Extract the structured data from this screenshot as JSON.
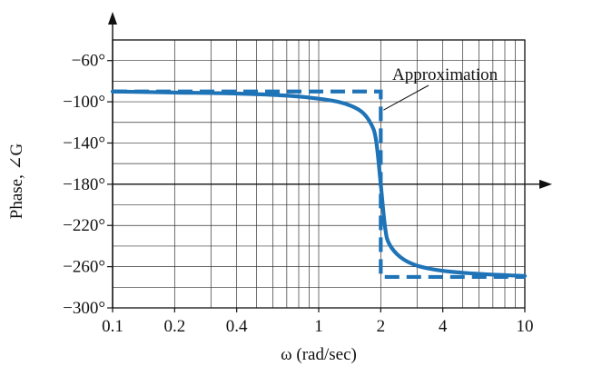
{
  "chart_data": {
    "type": "line",
    "title": "",
    "xlabel": "ω (rad/sec)",
    "ylabel": "Phase, ∠G",
    "x_scale": "log",
    "xlim": [
      0.1,
      10
    ],
    "ylim": [
      -300,
      -40
    ],
    "x_ticks": [
      0.1,
      0.2,
      0.4,
      1,
      2,
      4,
      10
    ],
    "x_tick_labels": [
      "0.1",
      "0.2",
      "0.4",
      "1",
      "2",
      "4",
      "10"
    ],
    "y_ticks": [
      -60,
      -100,
      -140,
      -180,
      -220,
      -260,
      -300
    ],
    "y_tick_labels": [
      "−60°",
      "−100°",
      "−140°",
      "−180°",
      "−220°",
      "−260°",
      "−300°"
    ],
    "grid": true,
    "reference_line_y": -180,
    "colors": {
      "series": "#1f73b7",
      "axis": "#111111",
      "grid": "#333333"
    },
    "series": [
      {
        "style": "solid",
        "x": [
          0.1,
          0.2,
          0.4,
          0.7,
          1.0,
          1.3,
          1.6,
          1.8,
          1.9,
          2.0,
          2.1,
          2.2,
          2.5,
          3.0,
          4.0,
          6.0,
          10.0
        ],
        "y": [
          -90,
          -91,
          -92,
          -94,
          -97,
          -101,
          -109,
          -122,
          -138,
          -180,
          -222,
          -238,
          -251,
          -259,
          -264,
          -267,
          -269
        ]
      },
      {
        "name": "Approximation",
        "style": "dashed",
        "x": [
          0.1,
          2.0,
          2.0,
          10.0
        ],
        "y": [
          -90,
          -90,
          -270,
          -270
        ]
      }
    ],
    "annotations": [
      {
        "text": "Approximation",
        "target_series": "Approximation"
      }
    ]
  }
}
